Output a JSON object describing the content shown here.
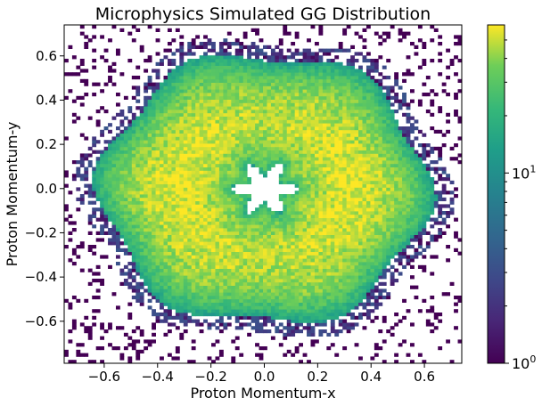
{
  "chart_data": {
    "type": "heatmap",
    "title": "Microphysics Simulated GG Distribution",
    "xlabel": "Proton Momentum-x",
    "ylabel": "Proton Momentum-y",
    "xlim": [
      -0.75,
      0.74
    ],
    "ylim": [
      -0.79,
      0.74
    ],
    "x_ticks": [
      -0.6,
      -0.4,
      -0.2,
      0.0,
      0.2,
      0.4,
      0.6
    ],
    "y_ticks": [
      -0.6,
      -0.4,
      -0.2,
      0.0,
      0.2,
      0.4,
      0.6
    ],
    "x_tick_labels": [
      "−0.6",
      "−0.4",
      "−0.2",
      "0.0",
      "0.2",
      "0.4",
      "0.6"
    ],
    "y_tick_labels": [
      "−0.6",
      "−0.4",
      "−0.2",
      "0.0",
      "0.2",
      "0.4",
      "0.6"
    ],
    "bins": 100,
    "colormap": "viridis",
    "colorbar": {
      "scale": "log",
      "range": [
        1,
        60
      ],
      "ticks": [
        {
          "value": 1,
          "base": "10",
          "exp": "0"
        },
        {
          "value": 10,
          "base": "10",
          "exp": "1"
        }
      ]
    },
    "distribution": {
      "description_shape": "ring with six-pointed star hole",
      "inner_radius": 0.09,
      "star_amplitude": 0.035,
      "star_points": 6,
      "outer_radius": 0.66,
      "outer_lobes": 6,
      "outer_amplitude": 0.035,
      "peak_radius": 0.28,
      "peak_count": 55
    },
    "grid": false
  }
}
